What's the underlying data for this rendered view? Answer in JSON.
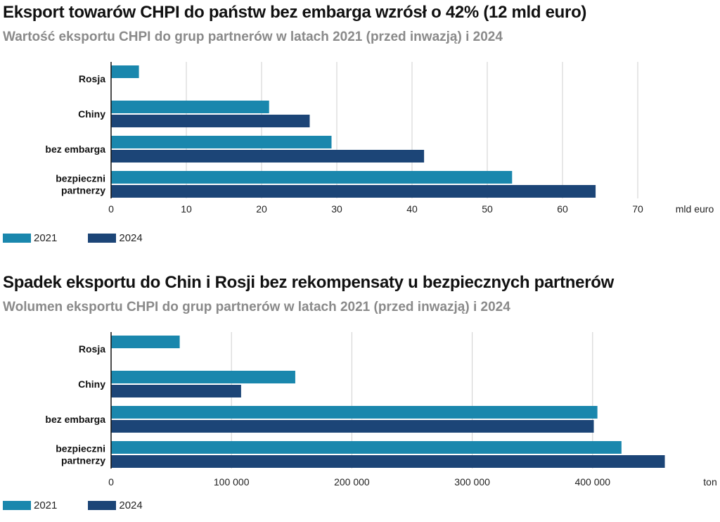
{
  "colors": {
    "s2021": "#1a87ad",
    "s2024": "#1c4577",
    "grid": "#cfcfcf",
    "axis": "#111111"
  },
  "chart_data": [
    {
      "type": "bar",
      "orientation": "horizontal",
      "title": "Eksport towarów CHPI do państw bez embarga wzrósł o 42% (12 mld euro)",
      "subtitle": "Wartość eksportu CHPI do grup partnerów w latach 2021 (przed inwazją) i 2024",
      "categories": [
        {
          "lines": [
            "Rosja"
          ]
        },
        {
          "lines": [
            "Chiny"
          ]
        },
        {
          "lines": [
            "bez embarga"
          ]
        },
        {
          "lines": [
            "bezpieczni",
            "partnerzy"
          ]
        }
      ],
      "series": [
        {
          "name": "2021",
          "values": [
            3.7,
            21.0,
            29.3,
            53.3
          ]
        },
        {
          "name": "2024",
          "values": [
            0,
            26.4,
            41.6,
            64.4
          ]
        }
      ],
      "xlim": [
        0,
        80
      ],
      "xticks": [
        0,
        10,
        20,
        30,
        40,
        50,
        60,
        70
      ],
      "tick_labels": [
        "0",
        "10",
        "20",
        "30",
        "40",
        "50",
        "60",
        "70"
      ],
      "unit_label": "mld euro",
      "grid": true,
      "legend": "bottom-left"
    },
    {
      "type": "bar",
      "orientation": "horizontal",
      "title": "Spadek eksportu do Chin i Rosji bez rekompensaty u bezpiecznych partnerów",
      "subtitle": "Wolumen eksportu CHPI do grup partnerów w latach 2021 (przed inwazją) i 2024",
      "categories": [
        {
          "lines": [
            "Rosja"
          ]
        },
        {
          "lines": [
            "Chiny"
          ]
        },
        {
          "lines": [
            "bez embarga"
          ]
        },
        {
          "lines": [
            "bezpieczni",
            "partnerzy"
          ]
        }
      ],
      "series": [
        {
          "name": "2021",
          "values": [
            57000,
            153000,
            404000,
            424000
          ]
        },
        {
          "name": "2024",
          "values": [
            0,
            108000,
            401000,
            460000
          ]
        }
      ],
      "xlim": [
        0,
        500000
      ],
      "xticks": [
        0,
        100000,
        200000,
        300000,
        400000
      ],
      "tick_labels": [
        "0",
        "100 000",
        "200 000",
        "300 000",
        "400 000"
      ],
      "unit_label": "ton",
      "grid": true,
      "legend": "bottom-left"
    }
  ]
}
